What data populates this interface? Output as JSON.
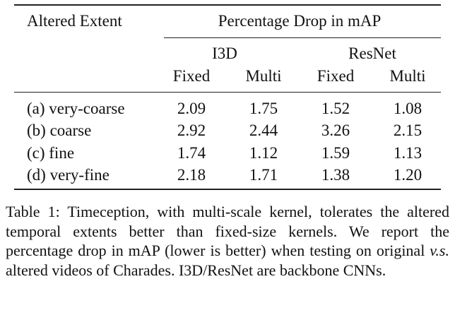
{
  "table": {
    "header_left": "Altered Extent",
    "header_span": "Percentage Drop in mAP",
    "groups": [
      "I3D",
      "ResNet"
    ],
    "subcols": [
      "Fixed",
      "Multi",
      "Fixed",
      "Multi"
    ],
    "rows": [
      {
        "label": "(a) very-coarse",
        "values": [
          "2.09",
          "1.75",
          "1.52",
          "1.08"
        ]
      },
      {
        "label": "(b) coarse",
        "values": [
          "2.92",
          "2.44",
          "3.26",
          "2.15"
        ]
      },
      {
        "label": "(c) fine",
        "values": [
          "1.74",
          "1.12",
          "1.59",
          "1.13"
        ]
      },
      {
        "label": "(d) very-fine",
        "values": [
          "2.18",
          "1.71",
          "1.38",
          "1.20"
        ]
      }
    ]
  },
  "caption": {
    "part1": "Table 1:  Timeception, with multi-scale kernel, tolerates the altered temporal extents better than fixed-size kernels. We report the percentage drop in mAP (lower is better) when testing on original ",
    "italic": "v.s.",
    "part2": "  altered videos of Charades. I3D/ResNet are backbone CNNs."
  }
}
